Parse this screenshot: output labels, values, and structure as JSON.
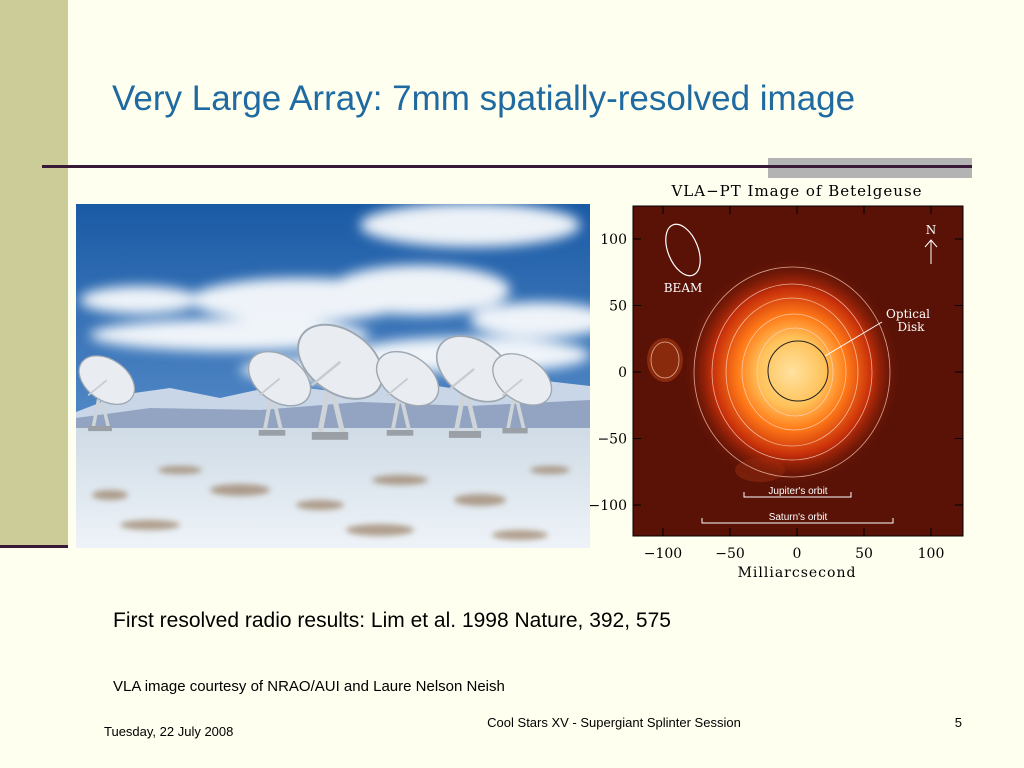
{
  "title": "Very Large Array: 7mm spatially-resolved image",
  "figure": {
    "title": "VLA−PT Image of Betelgeuse",
    "xlabel": "Milliarcsecond",
    "xticks": [
      "−100",
      "−50",
      "0",
      "50",
      "100"
    ],
    "yticks": [
      "100",
      "50",
      "0",
      "−50",
      "−100"
    ],
    "annotations": {
      "beam": "BEAM",
      "north": "N",
      "optical_disk": [
        "Optical",
        "Disk"
      ],
      "jupiter": "Jupiter's orbit",
      "saturn": "Saturn's orbit"
    }
  },
  "caption": "First resolved radio results: Lim et al. 1998 Nature, 392, 575",
  "credit": "VLA image courtesy of NRAO/AUI and Laure Nelson Neish",
  "footer": {
    "date": "Tuesday, 22 July 2008",
    "session": "Cool Stars XV - Supergiant Splinter Session",
    "page": "5"
  }
}
